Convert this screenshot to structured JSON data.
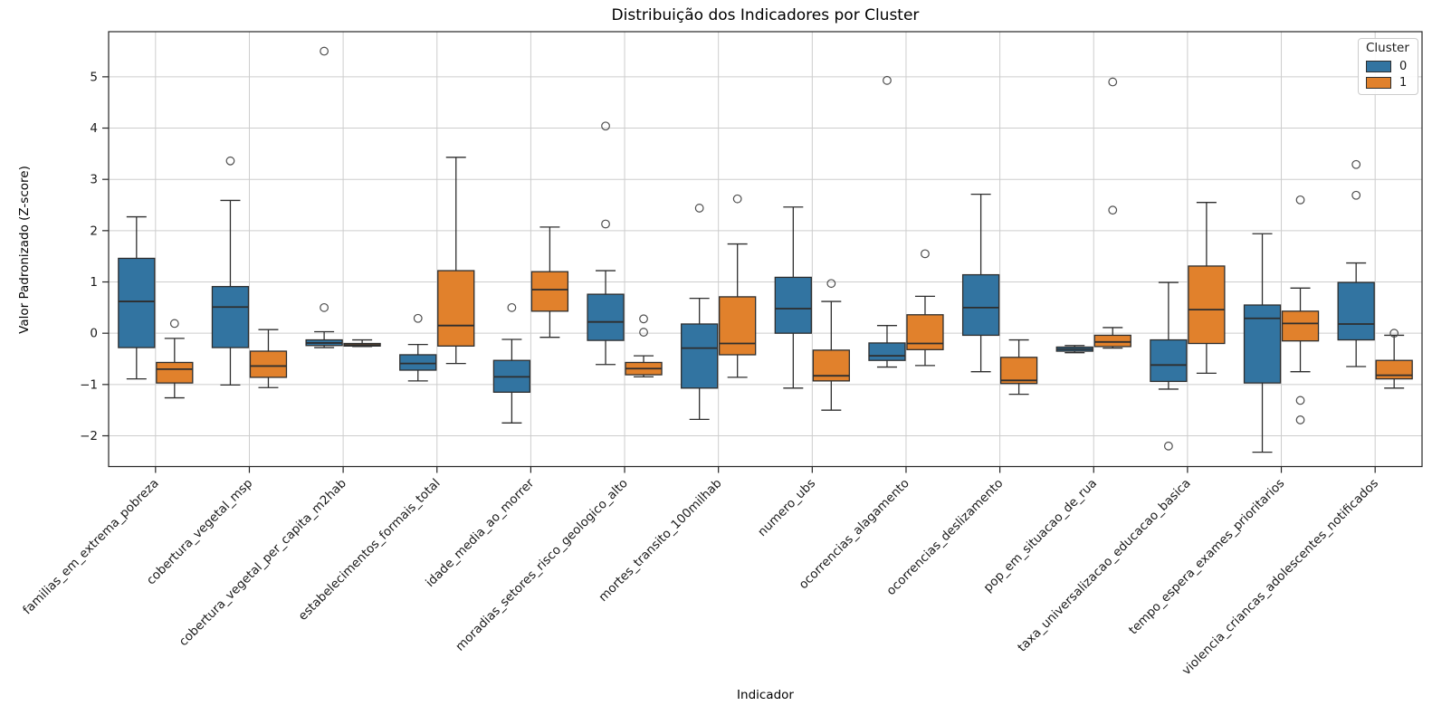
{
  "title": "Distribuição dos Indicadores por Cluster",
  "xlabel": "Indicador",
  "ylabel": "Valor Padronizado (Z-score)",
  "legend": {
    "title": "Cluster",
    "entries": [
      {
        "label": "0",
        "color": "#3274a1"
      },
      {
        "label": "1",
        "color": "#e1812c"
      }
    ]
  },
  "chart_data": {
    "type": "boxplot",
    "title": "Distribuição dos Indicadores por Cluster",
    "xlabel": "Indicador",
    "ylabel": "Valor Padronizado (Z-score)",
    "grid": true,
    "legend_position": "upper right",
    "ylim": [
      -2.6,
      5.88
    ],
    "yticks": [
      -2,
      -1,
      0,
      1,
      2,
      3,
      4,
      5
    ],
    "categories": [
      "familias_em_extrema_pobreza",
      "cobertura_vegetal_msp",
      "cobertura_vegetal_per_capita_m2hab",
      "estabelecimentos_formais_total",
      "idade_media_ao_morrer",
      "moradias_setores_risco_geologico_alto",
      "mortes_transito_100milhab",
      "numero_ubs",
      "ocorrencias_alagamento",
      "ocorrencias_deslizamento",
      "pop_em_situacao_de_rua",
      "taxa_universalizacao_educacao_basica",
      "tempo_espera_exames_prioritarios",
      "violencia_criancas_adolescentes_notificados"
    ],
    "series": [
      {
        "name": "0",
        "color": "#3274a1",
        "boxes": [
          {
            "whislo": -0.89,
            "q1": -0.28,
            "med": 0.62,
            "q3": 1.46,
            "whishi": 2.27,
            "outliers": []
          },
          {
            "whislo": -1.01,
            "q1": -0.28,
            "med": 0.51,
            "q3": 0.91,
            "whishi": 2.59,
            "outliers": [
              3.36
            ]
          },
          {
            "whislo": -0.28,
            "q1": -0.24,
            "med": -0.19,
            "q3": -0.13,
            "whishi": 0.03,
            "outliers": [
              5.5,
              0.5
            ]
          },
          {
            "whislo": -0.93,
            "q1": -0.72,
            "med": -0.59,
            "q3": -0.42,
            "whishi": -0.22,
            "outliers": [
              0.29
            ]
          },
          {
            "whislo": -1.75,
            "q1": -1.15,
            "med": -0.85,
            "q3": -0.53,
            "whishi": -0.12,
            "outliers": [
              0.5
            ]
          },
          {
            "whislo": -0.61,
            "q1": -0.14,
            "med": 0.22,
            "q3": 0.76,
            "whishi": 1.22,
            "outliers": [
              4.04,
              2.13
            ]
          },
          {
            "whislo": -1.68,
            "q1": -1.07,
            "med": -0.29,
            "q3": 0.18,
            "whishi": 0.68,
            "outliers": [
              2.44
            ]
          },
          {
            "whislo": -1.07,
            "q1": 0.0,
            "med": 0.48,
            "q3": 1.09,
            "whishi": 2.46,
            "outliers": []
          },
          {
            "whislo": -0.66,
            "q1": -0.53,
            "med": -0.44,
            "q3": -0.19,
            "whishi": 0.15,
            "outliers": [
              4.93
            ]
          },
          {
            "whislo": -0.75,
            "q1": -0.04,
            "med": 0.5,
            "q3": 1.14,
            "whishi": 2.71,
            "outliers": []
          },
          {
            "whislo": -0.38,
            "q1": -0.35,
            "med": -0.31,
            "q3": -0.27,
            "whishi": -0.24,
            "outliers": []
          },
          {
            "whislo": -1.09,
            "q1": -0.94,
            "med": -0.62,
            "q3": -0.13,
            "whishi": 0.99,
            "outliers": [
              -2.2
            ]
          },
          {
            "whislo": -2.32,
            "q1": -0.97,
            "med": 0.29,
            "q3": 0.55,
            "whishi": 1.94,
            "outliers": []
          },
          {
            "whislo": -0.65,
            "q1": -0.13,
            "med": 0.18,
            "q3": 0.99,
            "whishi": 1.37,
            "outliers": [
              3.29,
              2.69
            ]
          }
        ]
      },
      {
        "name": "1",
        "color": "#e1812c",
        "boxes": [
          {
            "whislo": -1.26,
            "q1": -0.97,
            "med": -0.7,
            "q3": -0.57,
            "whishi": -0.1,
            "outliers": [
              0.19
            ]
          },
          {
            "whislo": -1.06,
            "q1": -0.86,
            "med": -0.64,
            "q3": -0.35,
            "whishi": 0.07,
            "outliers": []
          },
          {
            "whislo": -0.26,
            "q1": -0.25,
            "med": -0.23,
            "q3": -0.2,
            "whishi": -0.13,
            "outliers": []
          },
          {
            "whislo": -0.59,
            "q1": -0.25,
            "med": 0.15,
            "q3": 1.22,
            "whishi": 3.43,
            "outliers": []
          },
          {
            "whislo": -0.08,
            "q1": 0.43,
            "med": 0.85,
            "q3": 1.2,
            "whishi": 2.07,
            "outliers": []
          },
          {
            "whislo": -0.85,
            "q1": -0.81,
            "med": -0.69,
            "q3": -0.57,
            "whishi": -0.44,
            "outliers": [
              0.28,
              0.02
            ]
          },
          {
            "whislo": -0.86,
            "q1": -0.42,
            "med": -0.2,
            "q3": 0.71,
            "whishi": 1.74,
            "outliers": [
              2.62
            ]
          },
          {
            "whislo": -1.5,
            "q1": -0.93,
            "med": -0.83,
            "q3": -0.33,
            "whishi": 0.62,
            "outliers": [
              0.97
            ]
          },
          {
            "whislo": -0.63,
            "q1": -0.32,
            "med": -0.2,
            "q3": 0.36,
            "whishi": 0.72,
            "outliers": [
              1.55
            ]
          },
          {
            "whislo": -1.19,
            "q1": -0.98,
            "med": -0.92,
            "q3": -0.47,
            "whishi": -0.13,
            "outliers": []
          },
          {
            "whislo": -0.29,
            "q1": -0.26,
            "med": -0.17,
            "q3": -0.04,
            "whishi": 0.11,
            "outliers": [
              4.9,
              2.4
            ]
          },
          {
            "whislo": -0.78,
            "q1": -0.2,
            "med": 0.46,
            "q3": 1.31,
            "whishi": 2.55,
            "outliers": []
          },
          {
            "whislo": -0.75,
            "q1": -0.15,
            "med": 0.19,
            "q3": 0.43,
            "whishi": 0.88,
            "outliers": [
              2.6,
              -1.31,
              -1.69
            ]
          },
          {
            "whislo": -1.07,
            "q1": -0.89,
            "med": -0.82,
            "q3": -0.53,
            "whishi": -0.04,
            "outliers": [
              0.0
            ]
          }
        ]
      }
    ]
  }
}
